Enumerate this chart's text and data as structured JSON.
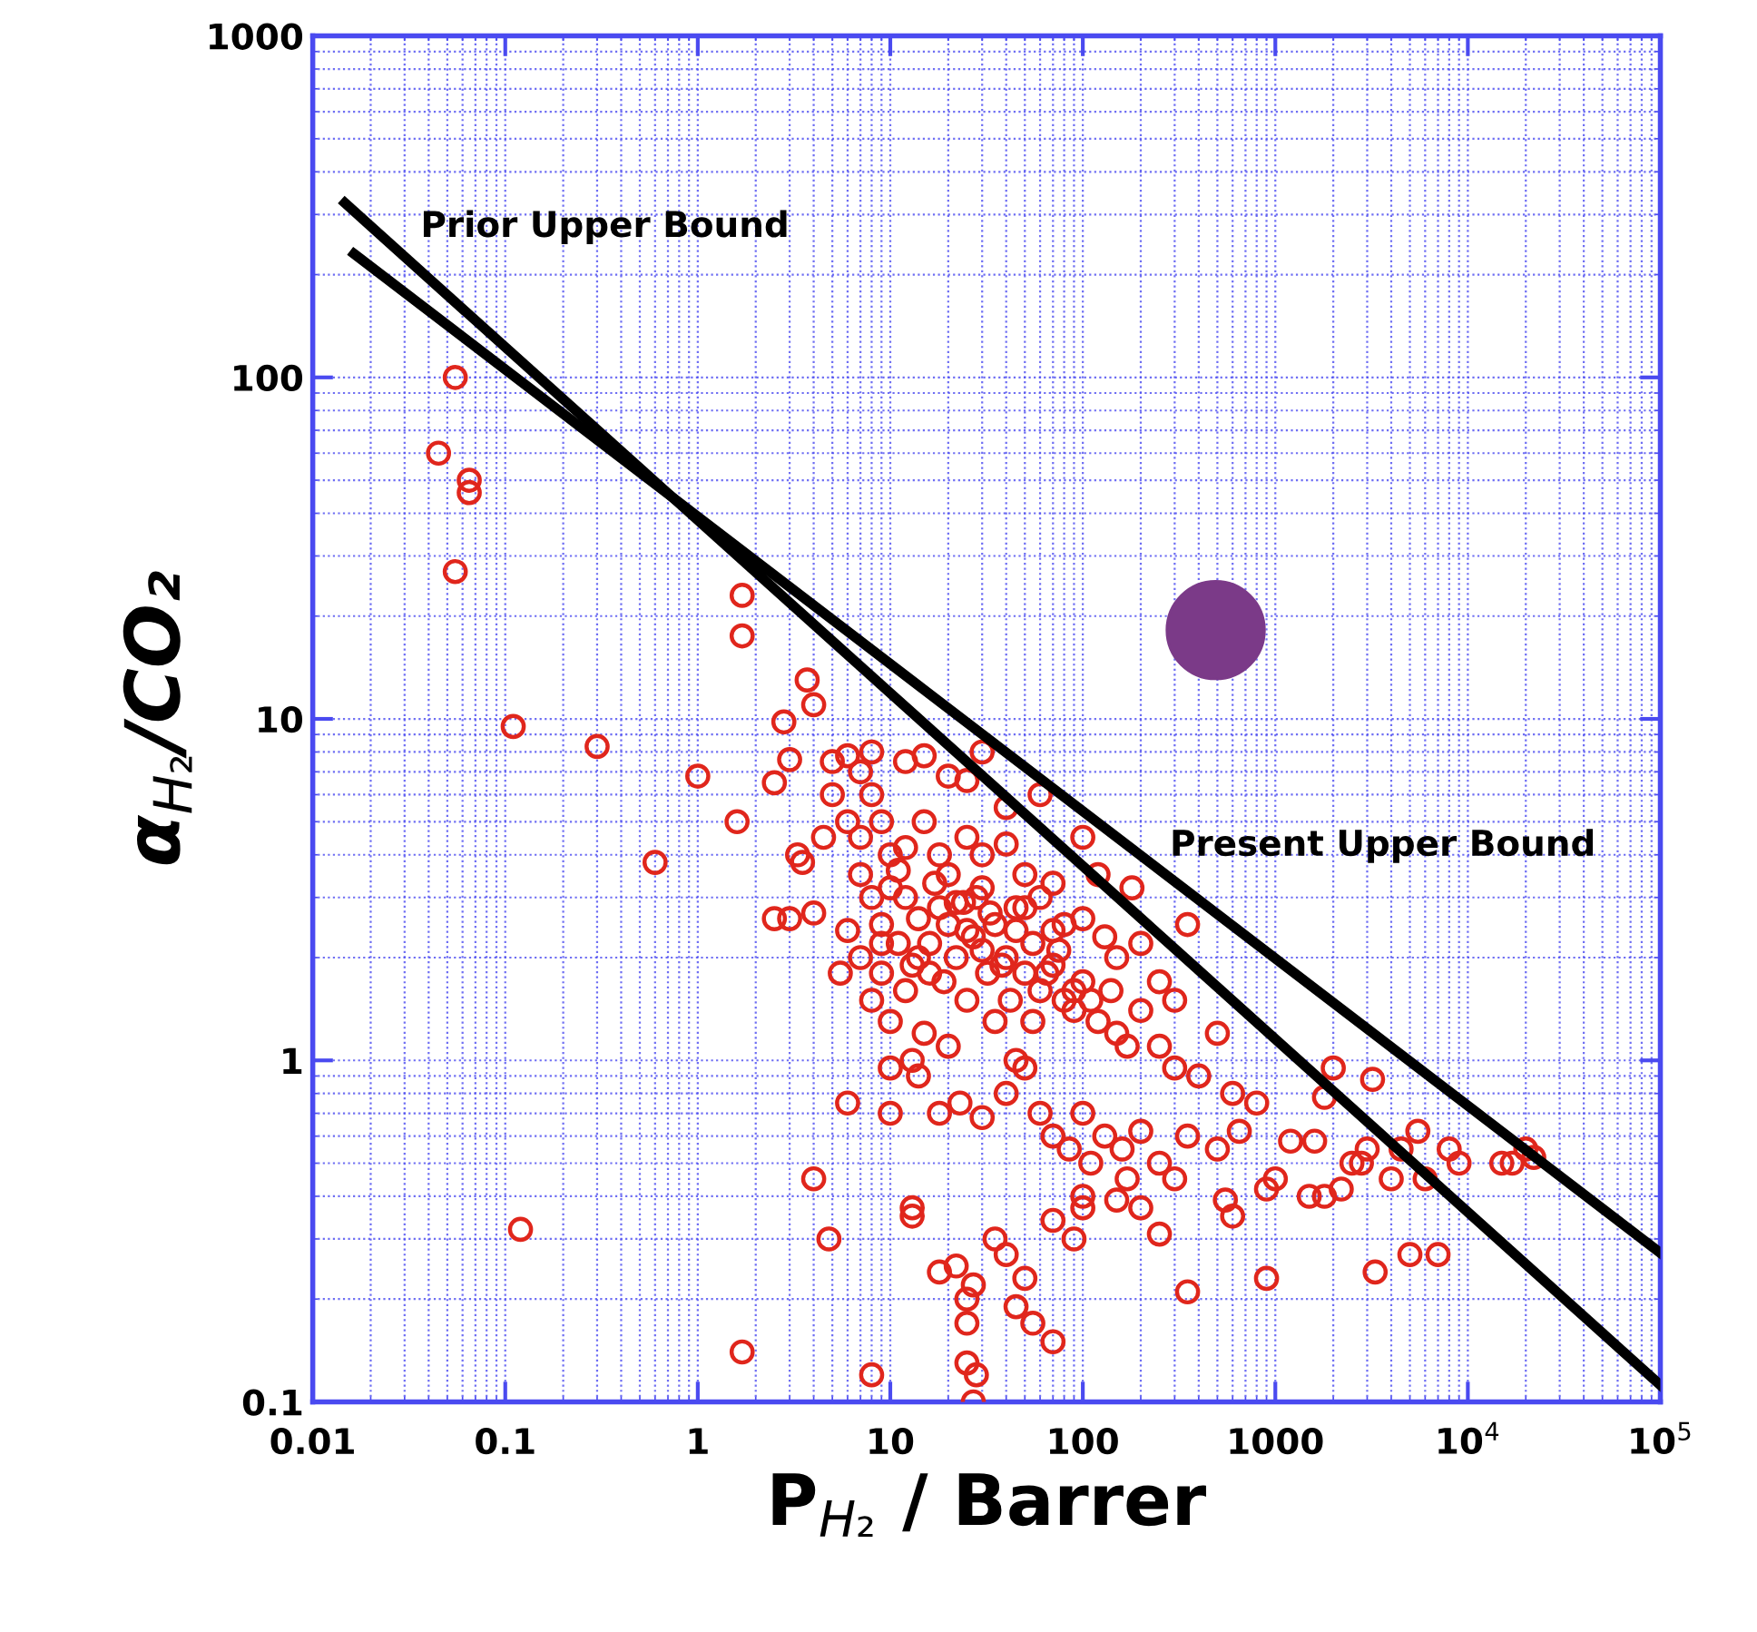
{
  "chart_data": {
    "type": "scatter",
    "xlabel": "P$_{H₂}$ / Barrer",
    "ylabel": "α$_{H₂}$/CO₂",
    "log": "xy",
    "grid": true,
    "xlim": [
      0.01,
      100000
    ],
    "ylim": [
      0.1,
      1000
    ],
    "xticks": [
      0.01,
      0.1,
      1,
      10,
      100,
      1000,
      {
        "value": 10000,
        "label": "10$^{4}$"
      },
      {
        "value": 100000,
        "label": "10$^{5}$"
      }
    ],
    "yticks": [
      0.1,
      1,
      10,
      100,
      1000
    ],
    "annotations": [
      "Prior Upper Bound",
      "Present Upper Bound"
    ],
    "series": [
      {
        "color": "#e0261c",
        "marker": "circle",
        "x": [
          0.055,
          0.045,
          0.065,
          0.065,
          0.055,
          0.11,
          0.12,
          0.3,
          0.6,
          1.0,
          1.7,
          1.7,
          1.7,
          1.6,
          2.5,
          2.5,
          2.8,
          3,
          3.3,
          3.7,
          4,
          4,
          4.8,
          6,
          8,
          8,
          3,
          3.5,
          4,
          4.5,
          5.5,
          5,
          6,
          7,
          5,
          6,
          7,
          8,
          9,
          10,
          7,
          8,
          9,
          10,
          12,
          14,
          16,
          18,
          20,
          22,
          25,
          28,
          30,
          35,
          40,
          45,
          50,
          55,
          60,
          70,
          80,
          90,
          100,
          120,
          150,
          200,
          250,
          300,
          400,
          500,
          600,
          12,
          15,
          18,
          25,
          30,
          40,
          50,
          60,
          70,
          80,
          100,
          130,
          150,
          200,
          250,
          300,
          350,
          12,
          9,
          10,
          13,
          15,
          20,
          25,
          35,
          45,
          55,
          8,
          7,
          10,
          14,
          10,
          18,
          23,
          30,
          40,
          50,
          60,
          70,
          85,
          100,
          110,
          130,
          160,
          200,
          250,
          300,
          350,
          13,
          13,
          18,
          22,
          25,
          25,
          27,
          25,
          27,
          28,
          35,
          40,
          45,
          50,
          55,
          70,
          70,
          90,
          100,
          100,
          150,
          170,
          200,
          250,
          350,
          550,
          600,
          900,
          500,
          650,
          800,
          900,
          1000,
          1200,
          1500,
          1600,
          1800,
          2000,
          2200,
          2500,
          3000,
          3200,
          3300,
          4000,
          5000,
          5500,
          6000,
          7000,
          8000,
          9000,
          15000,
          17000,
          20000,
          22000,
          1800,
          2800,
          4500,
          12,
          15,
          20,
          30,
          25,
          40,
          60,
          100,
          120,
          180,
          16,
          20,
          30,
          50,
          70,
          11,
          13,
          17,
          22,
          27,
          33,
          38,
          45,
          65,
          75,
          90,
          110,
          140,
          170,
          6,
          9,
          11,
          14,
          19,
          24,
          32,
          42
        ],
        "values": [
          100,
          60,
          50,
          46,
          27,
          9.5,
          0.32,
          8.3,
          3.8,
          6.8,
          23,
          17.5,
          0.14,
          5.0,
          2.6,
          6.5,
          9.8,
          7.6,
          4.0,
          13,
          11,
          0.45,
          0.3,
          0.75,
          0.12,
          8,
          2.6,
          3.8,
          2.7,
          4.5,
          1.8,
          7.5,
          7.8,
          7,
          6,
          5,
          4.5,
          6,
          5,
          4,
          3.5,
          3,
          2.5,
          3.2,
          3,
          2.6,
          2.2,
          2.8,
          3.5,
          2.0,
          2.4,
          3,
          2.1,
          2.5,
          2.0,
          2.8,
          1.8,
          2.2,
          1.6,
          1.9,
          1.5,
          1.4,
          1.7,
          1.3,
          1.2,
          1.4,
          1.1,
          0.95,
          0.9,
          1.2,
          0.8,
          4.2,
          5,
          4,
          4.5,
          4,
          4.3,
          3.5,
          3,
          3.3,
          2.5,
          2.6,
          2.3,
          2,
          2.2,
          1.7,
          1.5,
          2.5,
          1.6,
          1.8,
          1.3,
          1.0,
          1.2,
          1.1,
          1.5,
          1.3,
          1.0,
          1.3,
          1.5,
          2,
          0.95,
          0.9,
          0.7,
          0.7,
          0.75,
          0.68,
          0.8,
          0.95,
          0.7,
          0.6,
          0.55,
          0.7,
          0.5,
          0.6,
          0.55,
          0.62,
          0.5,
          0.45,
          0.6,
          0.37,
          0.35,
          0.24,
          0.25,
          0.2,
          0.17,
          0.22,
          0.13,
          0.1,
          0.12,
          0.3,
          0.27,
          0.19,
          0.23,
          0.17,
          0.15,
          0.34,
          0.3,
          0.37,
          0.4,
          0.39,
          0.45,
          0.37,
          0.31,
          0.21,
          0.39,
          0.35,
          0.23,
          0.55,
          0.62,
          0.75,
          0.42,
          0.45,
          0.58,
          0.4,
          0.58,
          0.78,
          0.95,
          0.42,
          0.5,
          0.55,
          0.88,
          0.24,
          0.45,
          0.27,
          0.62,
          0.45,
          0.27,
          0.55,
          0.5,
          0.5,
          0.5,
          0.55,
          0.52,
          0.4,
          0.5,
          0.55,
          7.5,
          7.8,
          6.8,
          8,
          6.6,
          5.5,
          6,
          4.5,
          3.5,
          3.2,
          1.8,
          2.5,
          3.2,
          2.8,
          2.4,
          2.2,
          1.9,
          3.3,
          2.9,
          2.3,
          2.7,
          1.9,
          2.4,
          1.8,
          2.1,
          1.6,
          1.5,
          1.6,
          1.1,
          2.4,
          2.2,
          3.6,
          2.0,
          1.7,
          2.9,
          1.8,
          1.5
        ]
      },
      {
        "type": "bubble",
        "color": "#7b3a88",
        "marker": "circle",
        "x": [
          490
        ],
        "values": [
          18.2
        ],
        "sizes": [
          1
        ]
      },
      {
        "type": "line",
        "color": "#000000",
        "x": [
          0.0147,
          100000
        ],
        "values": [
          324,
          0.112
        ]
      },
      {
        "type": "line",
        "color": "#000000",
        "x": [
          0.0164,
          100000
        ],
        "values": [
          230,
          0.273
        ]
      }
    ]
  }
}
